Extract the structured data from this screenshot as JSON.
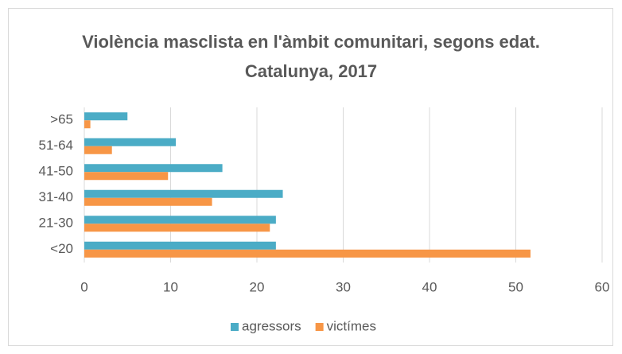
{
  "chart_data": {
    "type": "hbar",
    "title": "Violència masclista en l'àmbit comunitari, segons edat. Catalunya, 2017",
    "categories": [
      "<20",
      "21-30",
      "31-40",
      "41-50",
      "51-64",
      ">65"
    ],
    "series": [
      {
        "name": "agressors",
        "color": "#4bacc6",
        "values": [
          22.2,
          22.2,
          23.0,
          16.0,
          10.6,
          5.0
        ]
      },
      {
        "name": "victímes",
        "color": "#f79646",
        "values": [
          51.7,
          21.5,
          14.8,
          9.7,
          3.2,
          0.7
        ]
      }
    ],
    "xlim": [
      0,
      60
    ],
    "xticks": [
      0,
      10,
      20,
      30,
      40,
      50,
      60
    ],
    "grid": true,
    "legend": "bottom"
  }
}
